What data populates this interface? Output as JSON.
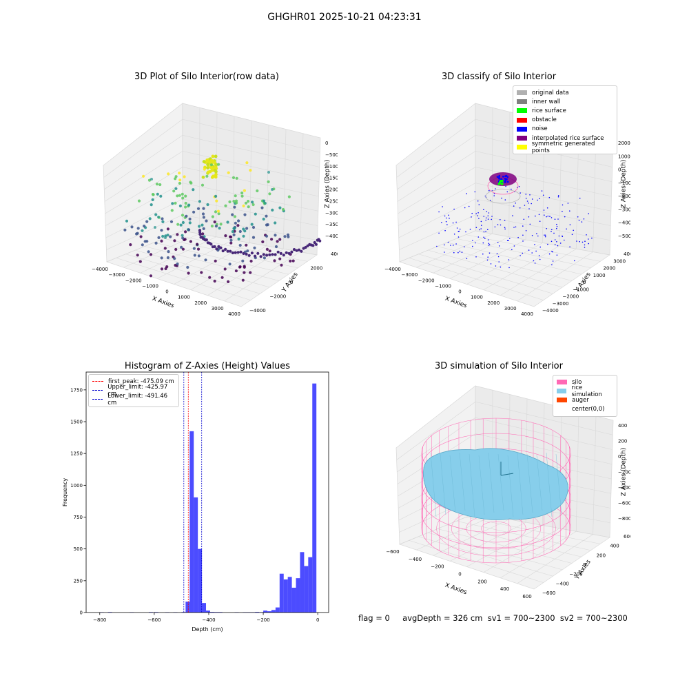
{
  "suptitle": "GHGHR01 2025-10-21 04:23:31",
  "footer": {
    "flag": "flag = 0",
    "avg": "avgDepth = 326 cm  sv1 = 700~2300  sv2 = 700~2300"
  },
  "panels": {
    "raw": {
      "title": "3D Plot of Silo Interior(row data)",
      "xlabel": "X Axies",
      "ylabel": "Y Axies",
      "zlabel": "Z Axies (Depth)",
      "xticks": [
        "−4000",
        "−3000",
        "−2000",
        "−1000",
        "0",
        "1000",
        "2000",
        "3000",
        "4000"
      ],
      "yticks": [
        "−4000",
        "−2000",
        "0",
        "2000",
        "4000"
      ],
      "zticks": [
        "0",
        "−500",
        "−1000",
        "−1500",
        "−2000",
        "−2500",
        "−3000",
        "−3500",
        "−4000"
      ]
    },
    "classify": {
      "title": "3D classify of Silo Interior",
      "xlabel": "X Axies",
      "ylabel": "Y Axies",
      "zlabel": "Z Axies (Depth)",
      "xticks": [
        "−4000",
        "−3000",
        "−2000",
        "−1000",
        "0",
        "1000",
        "2000",
        "3000",
        "4000"
      ],
      "yticks": [
        "−4000",
        "−3000",
        "−2000",
        "−1000",
        "0",
        "1000",
        "2000",
        "3000",
        "4000"
      ],
      "zticks": [
        "2000",
        "1000",
        "0",
        "−1000",
        "−2000",
        "−3000",
        "−4000",
        "−5000"
      ]
    },
    "sim": {
      "title": "3D simulation of Silo Interior",
      "xlabel": "X Axies",
      "ylabel": "Y Axies",
      "zlabel": "Z Axies (Depth)",
      "xticks": [
        "−600",
        "−400",
        "−200",
        "0",
        "200",
        "400",
        "600"
      ],
      "yticks": [
        "−600",
        "−400",
        "−200",
        "0",
        "200",
        "400",
        "600"
      ],
      "zticks": [
        "400",
        "200",
        "0",
        "−200",
        "−400",
        "−600",
        "−800"
      ]
    }
  },
  "classify_legend": [
    {
      "label": "original data",
      "color": "#b0b0b0"
    },
    {
      "label": "inner wall",
      "color": "#808080"
    },
    {
      "label": "rice surface",
      "color": "#00ff00"
    },
    {
      "label": "obstacle",
      "color": "#ff0000"
    },
    {
      "label": "noise",
      "color": "#0000ff"
    },
    {
      "label": "interpolated rice surface",
      "color": "#800080"
    },
    {
      "label": "symmetric generated points",
      "color": "#ffff00"
    }
  ],
  "sim_legend": [
    {
      "label": "silo",
      "color": "#ff69b4"
    },
    {
      "label": "rice simulation",
      "color": "#87ceeb"
    },
    {
      "label": "auger",
      "color": "#ff4500"
    },
    {
      "label": "center(0,0)",
      "color": "#ffffff"
    }
  ],
  "colors": {
    "hist_bar": "#0000ff",
    "first_peak": "#ff0000",
    "limits": "#0000cd"
  },
  "chart_data": {
    "type": "bar",
    "title": "Histogram of Z-Axies (Height) Values",
    "xlabel": "Depth (cm)",
    "ylabel": "Frequency",
    "xlim": [
      -850,
      40
    ],
    "ylim": [
      0,
      1890
    ],
    "xticks": [
      -800,
      -600,
      -400,
      -200,
      0
    ],
    "yticks": [
      0,
      250,
      500,
      750,
      1000,
      1250,
      1500,
      1750
    ],
    "bin_width": 15,
    "bins": [
      {
        "x0": -800,
        "count": 3
      },
      {
        "x0": -770,
        "count": 4
      },
      {
        "x0": -690,
        "count": 3
      },
      {
        "x0": -620,
        "count": 4
      },
      {
        "x0": -600,
        "count": 4
      },
      {
        "x0": -560,
        "count": 3
      },
      {
        "x0": -530,
        "count": 3
      },
      {
        "x0": -500,
        "count": 4
      },
      {
        "x0": -485,
        "count": 85
      },
      {
        "x0": -470,
        "count": 1425
      },
      {
        "x0": -455,
        "count": 905
      },
      {
        "x0": -440,
        "count": 500
      },
      {
        "x0": -425,
        "count": 75
      },
      {
        "x0": -410,
        "count": 15
      },
      {
        "x0": -395,
        "count": 5
      },
      {
        "x0": -380,
        "count": 4
      },
      {
        "x0": -365,
        "count": 4
      },
      {
        "x0": -305,
        "count": 3
      },
      {
        "x0": -275,
        "count": 3
      },
      {
        "x0": -260,
        "count": 3
      },
      {
        "x0": -245,
        "count": 3
      },
      {
        "x0": -230,
        "count": 5
      },
      {
        "x0": -215,
        "count": 3
      },
      {
        "x0": -200,
        "count": 15
      },
      {
        "x0": -185,
        "count": 10
      },
      {
        "x0": -170,
        "count": 20
      },
      {
        "x0": -155,
        "count": 40
      },
      {
        "x0": -140,
        "count": 305
      },
      {
        "x0": -125,
        "count": 260
      },
      {
        "x0": -110,
        "count": 280
      },
      {
        "x0": -95,
        "count": 195
      },
      {
        "x0": -80,
        "count": 270
      },
      {
        "x0": -65,
        "count": 475
      },
      {
        "x0": -50,
        "count": 365
      },
      {
        "x0": -35,
        "count": 435
      },
      {
        "x0": -20,
        "count": 1800
      }
    ],
    "vlines": [
      {
        "label": "first_peak: -475.09 cm",
        "x": -475.09,
        "color": "#ff0000"
      },
      {
        "label": "Upper_limit: -425.97 cm",
        "x": -425.97,
        "color": "#0000cd"
      },
      {
        "label": "Lower_limit: -491.46 cm",
        "x": -491.46,
        "color": "#0000cd"
      }
    ]
  }
}
